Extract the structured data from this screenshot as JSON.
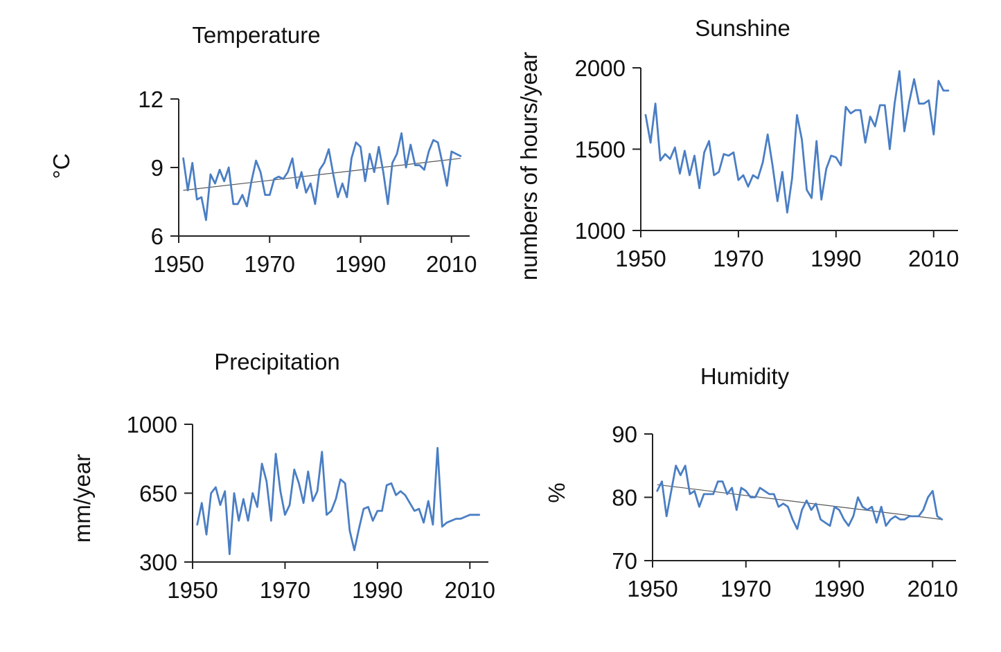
{
  "chart_data": [
    {
      "id": "temperature",
      "type": "line",
      "title": "Temperature",
      "xlabel": "",
      "ylabel": "°C",
      "xlim": [
        1950,
        2014
      ],
      "ylim": [
        6,
        12
      ],
      "xticks": [
        1950,
        1970,
        1990,
        2010
      ],
      "xtick_labels": [
        "1950",
        "1970",
        "1990",
        "2010"
      ],
      "yticks": [
        6,
        9,
        12
      ],
      "ytick_labels": [
        "6",
        "9",
        "12"
      ],
      "series": [
        {
          "color": "#4a7ec4",
          "x": [
            1951,
            1952,
            1953,
            1954,
            1955,
            1956,
            1957,
            1958,
            1959,
            1960,
            1961,
            1962,
            1963,
            1964,
            1965,
            1966,
            1967,
            1968,
            1969,
            1970,
            1971,
            1972,
            1973,
            1974,
            1975,
            1976,
            1977,
            1978,
            1979,
            1980,
            1981,
            1982,
            1983,
            1984,
            1985,
            1986,
            1987,
            1988,
            1989,
            1990,
            1991,
            1992,
            1993,
            1994,
            1995,
            1996,
            1997,
            1998,
            1999,
            2000,
            2001,
            2002,
            2003,
            2004,
            2005,
            2006,
            2007,
            2008,
            2009,
            2010,
            2011,
            2012
          ],
          "values": [
            9.4,
            8.0,
            9.2,
            7.6,
            7.7,
            6.7,
            8.7,
            8.3,
            8.9,
            8.4,
            9.0,
            7.4,
            7.4,
            7.8,
            7.3,
            8.4,
            9.3,
            8.8,
            7.8,
            7.8,
            8.5,
            8.6,
            8.5,
            8.8,
            9.4,
            8.1,
            8.8,
            7.9,
            8.3,
            7.4,
            8.9,
            9.2,
            9.8,
            8.7,
            7.7,
            8.3,
            7.7,
            9.4,
            10.1,
            9.9,
            8.4,
            9.6,
            8.8,
            9.9,
            8.8,
            7.4,
            9.2,
            9.6,
            10.5,
            9.0,
            10.0,
            9.1,
            9.1,
            8.9,
            9.7,
            10.2,
            10.1,
            9.2,
            8.2,
            9.7,
            9.6,
            9.5
          ]
        }
      ],
      "trendline": {
        "x": [
          1951,
          2012
        ],
        "values": [
          8.0,
          9.4
        ]
      }
    },
    {
      "id": "sunshine",
      "type": "line",
      "title": "Sunshine",
      "xlabel": "",
      "ylabel": "numbers of hours/year",
      "xlim": [
        1950,
        2015
      ],
      "ylim": [
        1000,
        2000
      ],
      "xticks": [
        1950,
        1970,
        1990,
        2010
      ],
      "xtick_labels": [
        "1950",
        "1970",
        "1990",
        "2010"
      ],
      "yticks": [
        1000,
        1500,
        2000
      ],
      "ytick_labels": [
        "1000",
        "1500",
        "2000"
      ],
      "series": [
        {
          "color": "#4a7ec4",
          "x": [
            1951,
            1952,
            1953,
            1954,
            1955,
            1956,
            1957,
            1958,
            1959,
            1960,
            1961,
            1962,
            1963,
            1964,
            1965,
            1966,
            1967,
            1968,
            1969,
            1970,
            1971,
            1972,
            1973,
            1974,
            1975,
            1976,
            1977,
            1978,
            1979,
            1980,
            1981,
            1982,
            1983,
            1984,
            1985,
            1986,
            1987,
            1988,
            1989,
            1990,
            1991,
            1992,
            1993,
            1994,
            1995,
            1996,
            1997,
            1998,
            1999,
            2000,
            2001,
            2002,
            2003,
            2004,
            2005,
            2006,
            2007,
            2008,
            2009,
            2010,
            2011,
            2012,
            2013
          ],
          "values": [
            1710,
            1540,
            1780,
            1430,
            1470,
            1440,
            1510,
            1350,
            1490,
            1340,
            1460,
            1260,
            1480,
            1550,
            1340,
            1360,
            1470,
            1460,
            1480,
            1310,
            1340,
            1270,
            1340,
            1320,
            1420,
            1590,
            1400,
            1180,
            1360,
            1110,
            1320,
            1710,
            1560,
            1250,
            1200,
            1550,
            1190,
            1380,
            1460,
            1450,
            1400,
            1760,
            1720,
            1740,
            1740,
            1540,
            1700,
            1640,
            1770,
            1770,
            1500,
            1780,
            1980,
            1610,
            1790,
            1930,
            1780,
            1780,
            1800,
            1590,
            1920,
            1860,
            1860
          ]
        }
      ]
    },
    {
      "id": "precipitation",
      "type": "line",
      "title": "Precipitation",
      "xlabel": "",
      "ylabel": "mm/year",
      "xlim": [
        1950,
        2014
      ],
      "ylim": [
        300,
        1000
      ],
      "xticks": [
        1950,
        1970,
        1990,
        2010
      ],
      "xtick_labels": [
        "1950",
        "1970",
        "1990",
        "2010"
      ],
      "yticks": [
        300,
        650,
        1000
      ],
      "ytick_labels": [
        "300",
        "650",
        "1000"
      ],
      "series": [
        {
          "color": "#4a7ec4",
          "x": [
            1951,
            1952,
            1953,
            1954,
            1955,
            1956,
            1957,
            1958,
            1959,
            1960,
            1961,
            1962,
            1963,
            1964,
            1965,
            1966,
            1967,
            1968,
            1969,
            1970,
            1971,
            1972,
            1973,
            1974,
            1975,
            1976,
            1977,
            1978,
            1979,
            1980,
            1981,
            1982,
            1983,
            1984,
            1985,
            1986,
            1987,
            1988,
            1989,
            1990,
            1991,
            1992,
            1993,
            1994,
            1995,
            1996,
            1997,
            1998,
            1999,
            2000,
            2001,
            2002,
            2003,
            2004,
            2005,
            2006,
            2007,
            2008,
            2009,
            2010,
            2011,
            2012
          ],
          "values": [
            490,
            600,
            440,
            650,
            680,
            590,
            660,
            340,
            650,
            510,
            620,
            510,
            650,
            580,
            800,
            710,
            510,
            850,
            660,
            540,
            590,
            770,
            700,
            600,
            760,
            610,
            660,
            860,
            540,
            560,
            620,
            720,
            700,
            460,
            360,
            470,
            570,
            580,
            510,
            560,
            560,
            690,
            700,
            640,
            660,
            640,
            600,
            560,
            570,
            500,
            610,
            490,
            880,
            480,
            500,
            510,
            520,
            520,
            530,
            540,
            540,
            540
          ]
        }
      ]
    },
    {
      "id": "humidity",
      "type": "line",
      "title": "Humidity",
      "xlabel": "",
      "ylabel": "%",
      "xlim": [
        1950,
        2015
      ],
      "ylim": [
        70,
        90
      ],
      "xticks": [
        1950,
        1970,
        1990,
        2010
      ],
      "xtick_labels": [
        "1950",
        "1970",
        "1990",
        "2010"
      ],
      "yticks": [
        70,
        80,
        90
      ],
      "ytick_labels": [
        "70",
        "80",
        "90"
      ],
      "series": [
        {
          "color": "#4a7ec4",
          "x": [
            1951,
            1952,
            1953,
            1954,
            1955,
            1956,
            1957,
            1958,
            1959,
            1960,
            1961,
            1962,
            1963,
            1964,
            1965,
            1966,
            1967,
            1968,
            1969,
            1970,
            1971,
            1972,
            1973,
            1974,
            1975,
            1976,
            1977,
            1978,
            1979,
            1980,
            1981,
            1982,
            1983,
            1984,
            1985,
            1986,
            1987,
            1988,
            1989,
            1990,
            1991,
            1992,
            1993,
            1994,
            1995,
            1996,
            1997,
            1998,
            1999,
            2000,
            2001,
            2002,
            2003,
            2004,
            2005,
            2006,
            2007,
            2008,
            2009,
            2010,
            2011,
            2012
          ],
          "values": [
            81,
            82.5,
            77,
            81,
            85,
            83.5,
            85,
            80.5,
            81,
            78.5,
            80.5,
            80.5,
            80.5,
            82.5,
            82.5,
            80.5,
            81.5,
            78,
            81.5,
            81,
            80,
            80,
            81.5,
            81,
            80.5,
            80.5,
            78.5,
            79,
            78.5,
            76.5,
            75,
            78,
            79.5,
            78,
            79,
            76.5,
            76,
            75.5,
            78.5,
            78,
            76.5,
            75.5,
            77,
            80,
            78.5,
            78,
            78.5,
            76,
            78.5,
            75.5,
            76.5,
            77,
            76.5,
            76.5,
            77,
            77,
            77,
            78,
            80,
            81,
            77,
            76.5
          ]
        }
      ],
      "trendline": {
        "x": [
          1951,
          2012
        ],
        "values": [
          82,
          76.5
        ]
      }
    }
  ]
}
